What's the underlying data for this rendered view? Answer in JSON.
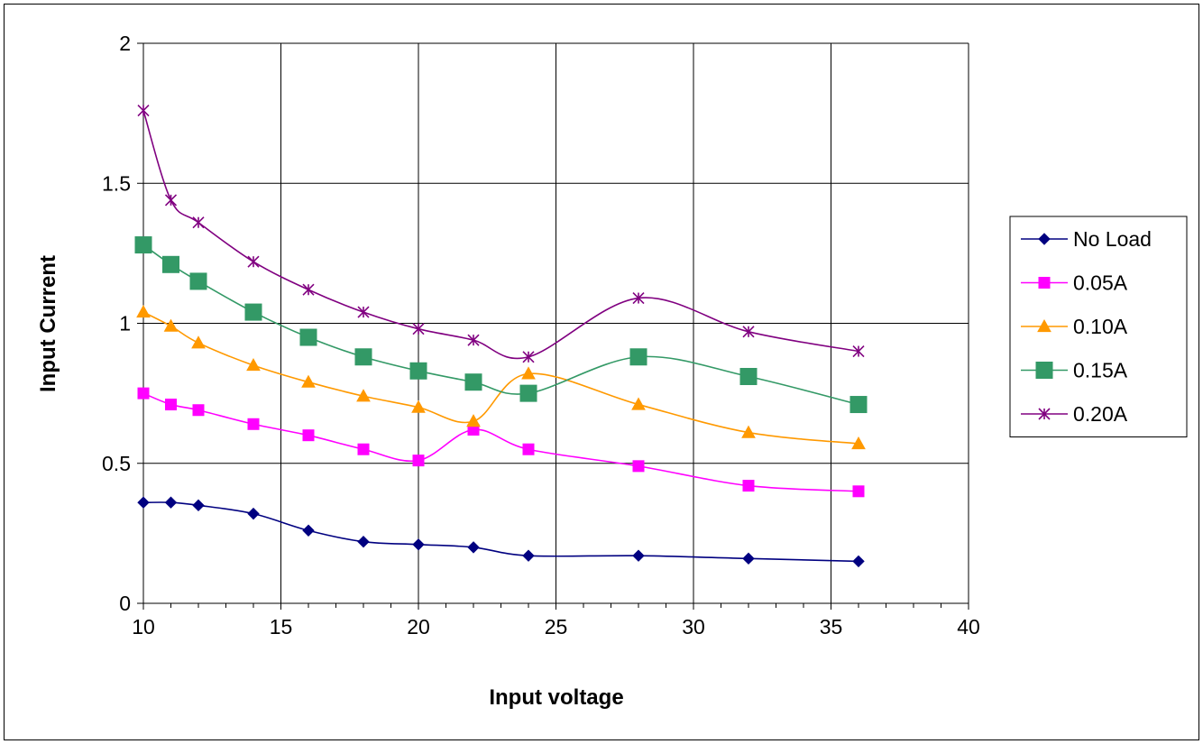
{
  "chart_data": {
    "type": "line",
    "title": "",
    "xlabel": "Input voltage",
    "ylabel": "Input Current",
    "xlim": [
      10,
      40
    ],
    "ylim": [
      0,
      2
    ],
    "xticks": [
      10,
      15,
      20,
      25,
      30,
      35,
      40
    ],
    "yticks": [
      0,
      0.5,
      1,
      1.5,
      2
    ],
    "xtick_labels": [
      "10",
      "15",
      "20",
      "25",
      "30",
      "35",
      "40"
    ],
    "ytick_labels": [
      "0",
      "0.5",
      "1",
      "1.5",
      "2"
    ],
    "grid": true,
    "smooth": true,
    "legend_position": "right",
    "x": [
      10,
      11,
      12,
      14,
      16,
      18,
      20,
      22,
      24,
      28,
      32,
      36
    ],
    "series": [
      {
        "name": "No Load",
        "color": "#000080",
        "marker": "diamond",
        "values": [
          0.36,
          0.36,
          0.35,
          0.32,
          0.26,
          0.22,
          0.21,
          0.2,
          0.17,
          0.17,
          0.16,
          0.15
        ]
      },
      {
        "name": "0.05A",
        "color": "#FF00FF",
        "marker": "square",
        "values": [
          0.75,
          0.71,
          0.69,
          0.64,
          0.6,
          0.55,
          0.51,
          0.62,
          0.55,
          0.49,
          0.42,
          0.4
        ]
      },
      {
        "name": "0.10A",
        "color": "#FF9900",
        "marker": "triangle",
        "values": [
          1.04,
          0.99,
          0.93,
          0.85,
          0.79,
          0.74,
          0.7,
          0.65,
          0.82,
          0.71,
          0.61,
          0.57
        ]
      },
      {
        "name": "0.15A",
        "color": "#339966",
        "marker": "square-large",
        "values": [
          1.28,
          1.21,
          1.15,
          1.04,
          0.95,
          0.88,
          0.83,
          0.79,
          0.75,
          0.88,
          0.81,
          0.71
        ]
      },
      {
        "name": "0.20A",
        "color": "#800080",
        "marker": "asterisk",
        "values": [
          1.76,
          1.44,
          1.36,
          1.22,
          1.12,
          1.04,
          0.98,
          0.94,
          0.88,
          1.09,
          0.97,
          0.9
        ]
      }
    ]
  }
}
